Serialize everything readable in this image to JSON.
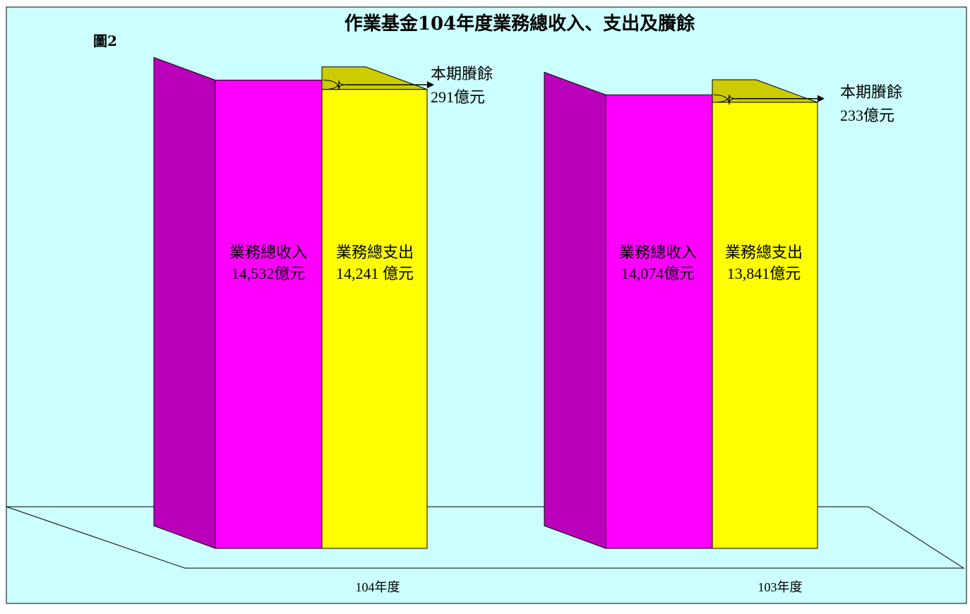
{
  "chart_data": {
    "type": "bar",
    "title": "作業基金104年度業務總收入、支出及賸餘",
    "figure_label": "圖2",
    "unit": "億元",
    "categories": [
      "104年度",
      "103年度"
    ],
    "series": [
      {
        "name": "業務總收入",
        "values": [
          14532,
          14074
        ]
      },
      {
        "name": "業務總支出",
        "values": [
          14241,
          13841
        ]
      }
    ],
    "surplus": [
      291,
      233
    ],
    "bar_labels": {
      "104年度": {
        "income_value": "14,532億元",
        "expense_value": "14,241 億元",
        "surplus_title": "本期賸餘",
        "surplus_value": "291億元"
      },
      "103年度": {
        "income_value": "14,074億元",
        "expense_value": "13,841億元",
        "surplus_title": "本期賸餘",
        "surplus_value": "233億元"
      }
    },
    "colors": {
      "background": "#ccffff",
      "income_front": "#ff00ff",
      "income_side": "#bb00bb",
      "expense_front": "#ffff00",
      "expense_top": "#cccc00",
      "floor": "#ccffff",
      "outline": "#000000"
    }
  }
}
